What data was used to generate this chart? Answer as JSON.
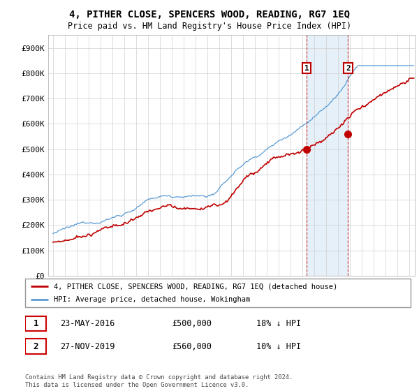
{
  "title": "4, PITHER CLOSE, SPENCERS WOOD, READING, RG7 1EQ",
  "subtitle": "Price paid vs. HM Land Registry's House Price Index (HPI)",
  "ylim": [
    0,
    950000
  ],
  "yticks": [
    0,
    100000,
    200000,
    300000,
    400000,
    500000,
    600000,
    700000,
    800000,
    900000
  ],
  "ytick_labels": [
    "£0",
    "£100K",
    "£200K",
    "£300K",
    "£400K",
    "£500K",
    "£600K",
    "£700K",
    "£800K",
    "£900K"
  ],
  "legend_line1": "4, PITHER CLOSE, SPENCERS WOOD, READING, RG7 1EQ (detached house)",
  "legend_line2": "HPI: Average price, detached house, Wokingham",
  "transaction1_date": "23-MAY-2016",
  "transaction1_price": "£500,000",
  "transaction1_hpi": "18% ↓ HPI",
  "transaction2_date": "27-NOV-2019",
  "transaction2_price": "£560,000",
  "transaction2_hpi": "10% ↓ HPI",
  "footer": "Contains HM Land Registry data © Crown copyright and database right 2024.\nThis data is licensed under the Open Government Licence v3.0.",
  "hpi_color": "#5b9bd5",
  "hpi_fill_color": "#d0e4f5",
  "price_color": "#c00000",
  "background_color": "#ffffff",
  "grid_color": "#d0d0d0",
  "t1_year": 2016.375,
  "t2_year": 2019.875,
  "marker1_price": 500000,
  "marker2_price": 560000
}
